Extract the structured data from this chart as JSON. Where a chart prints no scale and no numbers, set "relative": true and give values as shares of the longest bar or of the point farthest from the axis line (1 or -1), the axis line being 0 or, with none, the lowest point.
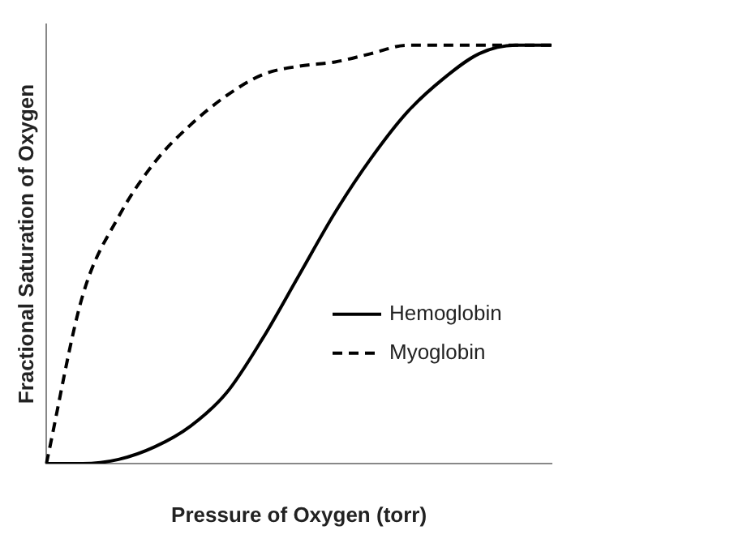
{
  "chart_data": {
    "type": "line",
    "relative": true,
    "xlabel": "Pressure of Oxygen (torr)",
    "ylabel": "Fractional Saturation of Oxygen",
    "categories": [
      null,
      null,
      null,
      null,
      null,
      null,
      null,
      null,
      null,
      null,
      null,
      null,
      null,
      null,
      null
    ],
    "legend": "right",
    "grid": false,
    "marker": "none",
    "series": [
      {
        "name": "Hemoglobin",
        "color": "#000000",
        "line_style": "solid",
        "values": [
          0,
          0,
          0.01,
          0.04,
          0.09,
          0.17,
          0.3,
          0.45,
          0.6,
          0.73,
          0.84,
          0.92,
          0.98,
          1,
          1
        ]
      },
      {
        "name": "Myoglobin",
        "color": "#000000",
        "line_style": "dashed",
        "values": [
          0,
          0.4,
          0.59,
          0.72,
          0.81,
          0.88,
          0.93,
          0.95,
          0.96,
          0.98,
          1,
          1,
          1,
          1,
          1
        ]
      }
    ]
  }
}
